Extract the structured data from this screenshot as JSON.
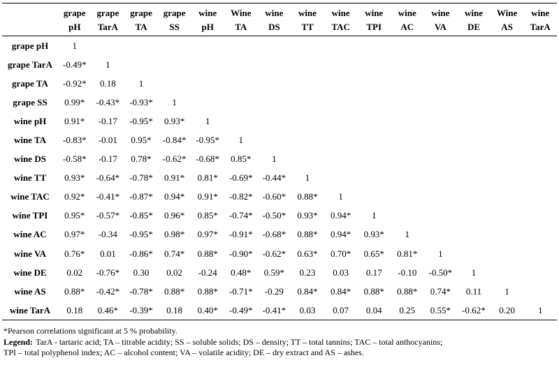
{
  "table": {
    "columns": [
      {
        "top": "grape",
        "bottom": "pH"
      },
      {
        "top": "grape",
        "bottom": "TarA"
      },
      {
        "top": "grape",
        "bottom": "TA"
      },
      {
        "top": "grape",
        "bottom": "SS"
      },
      {
        "top": "wine",
        "bottom": "pH"
      },
      {
        "top": "Wine",
        "bottom": "TA"
      },
      {
        "top": "wine",
        "bottom": "DS"
      },
      {
        "top": "wine",
        "bottom": "TT"
      },
      {
        "top": "wine",
        "bottom": "TAC"
      },
      {
        "top": "wine",
        "bottom": "TPI"
      },
      {
        "top": "wine",
        "bottom": "AC"
      },
      {
        "top": "wine",
        "bottom": "VA"
      },
      {
        "top": "wine",
        "bottom": "DE"
      },
      {
        "top": "Wine",
        "bottom": "AS"
      },
      {
        "top": "wine",
        "bottom": "TarA"
      }
    ],
    "rows": [
      {
        "label": "grape pH",
        "values": [
          "1"
        ]
      },
      {
        "label": "grape TarA",
        "values": [
          "-0.49*",
          "1"
        ]
      },
      {
        "label": "grape TA",
        "values": [
          "-0.92*",
          "0.18",
          "1"
        ]
      },
      {
        "label": "grape SS",
        "values": [
          "0.99*",
          "-0.43*",
          "-0.93*",
          "1"
        ]
      },
      {
        "label": "wine pH",
        "values": [
          "0.91*",
          "-0.17",
          "-0.95*",
          "0.93*",
          "1"
        ]
      },
      {
        "label": "wine TA",
        "values": [
          "-0.83*",
          "-0.01",
          "0.95*",
          "-0.84*",
          "-0.95*",
          "1"
        ]
      },
      {
        "label": "wine DS",
        "values": [
          "-0.58*",
          "-0.17",
          "0.78*",
          "-0.62*",
          "-0.68*",
          "0.85*",
          "1"
        ]
      },
      {
        "label": "wine TT",
        "values": [
          "0.93*",
          "-0.64*",
          "-0.78*",
          "0.91*",
          "0.81*",
          "-0.69*",
          "-0.44*",
          "1"
        ]
      },
      {
        "label": "wine TAC",
        "values": [
          "0.92*",
          "-0.41*",
          "-0.87*",
          "0.94*",
          "0.91*",
          "-0.82*",
          "-0.60*",
          "0.88*",
          "1"
        ]
      },
      {
        "label": "wine TPI",
        "values": [
          "0.95*",
          "-0.57*",
          "-0.85*",
          "0.96*",
          "0.85*",
          "-0.74*",
          "-0.50*",
          "0.93*",
          "0.94*",
          "1"
        ]
      },
      {
        "label": "wine AC",
        "values": [
          "0.97*",
          "-0.34",
          "-0.95*",
          "0.98*",
          "0.97*",
          "-0.91*",
          "-0.68*",
          "0.88*",
          "0.94*",
          "0.93*",
          "1"
        ]
      },
      {
        "label": "wine VA",
        "values": [
          "0.76*",
          "0.01",
          "-0.86*",
          "0.74*",
          "0.88*",
          "-0.90*",
          "-0.62*",
          "0.63*",
          "0.70*",
          "0.65*",
          "0.81*",
          "1"
        ]
      },
      {
        "label": "wine DE",
        "values": [
          "0.02",
          "-0.76*",
          "0.30",
          "0.02",
          "-0.24",
          "0.48*",
          "0.59*",
          "0.23",
          "0.03",
          "0.17",
          "-0.10",
          "-0.50*",
          "1"
        ]
      },
      {
        "label": "wine AS",
        "values": [
          "0.88*",
          "-0.42*",
          "-0.78*",
          "0.88*",
          "0.88*",
          "-0.71*",
          "-0.29",
          "0.84*",
          "0.84*",
          "0.88*",
          "0.88*",
          "0.74*",
          "0.11",
          "1"
        ]
      },
      {
        "label": "wine TarA",
        "values": [
          "0.18",
          "0.46*",
          "-0.39*",
          "0.18",
          "0.40*",
          "-0.49*",
          "-0.41*",
          "0.03",
          "0.07",
          "0.04",
          "0.25",
          "0.55*",
          "-0.62*",
          "0.20",
          "1"
        ]
      }
    ]
  },
  "footnotes": {
    "significance": "*Pearson correlations significant at 5 % probability.",
    "legend_label": "Legend:",
    "legend_line1": "TarA  - tartaric acid; TA – titrable acidity; SS – soluble solids;  DS – density;  TT – total tannins;  TAC – total anthocyanins;",
    "legend_line2": "TPI – total polyphenol index; AC – alcohol content; VA – volatile acidity; DE – dry extract and AS – ashes."
  },
  "colors": {
    "text": "#000000",
    "background": "#ffffff",
    "rule": "#000000"
  }
}
